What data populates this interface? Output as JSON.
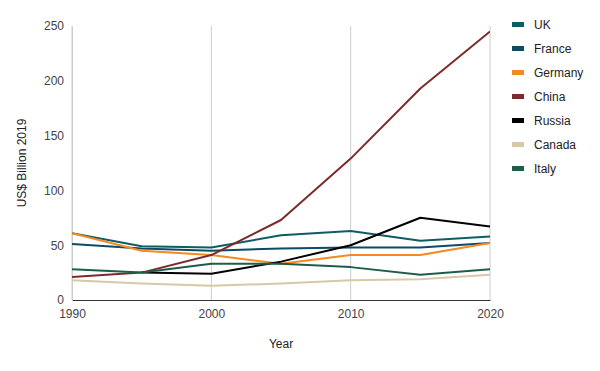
{
  "chart_data": {
    "type": "line",
    "x_label": "Year",
    "y_label": "US$ Billion 2019",
    "x": [
      1990,
      1995,
      2000,
      2005,
      2010,
      2015,
      2020
    ],
    "xlim": [
      1990,
      2020
    ],
    "xticks": [
      1990,
      2000,
      2010,
      2020
    ],
    "ylim": [
      0,
      250
    ],
    "yticks": [
      0,
      50,
      100,
      150,
      200,
      250
    ],
    "grid": true,
    "legend": "right",
    "series": [
      {
        "name": "UK",
        "color": "#0f5c63",
        "values": [
          61,
          49,
          48,
          59,
          63,
          54,
          58
        ]
      },
      {
        "name": "France",
        "color": "#0d4a66",
        "values": [
          51,
          47,
          45,
          47,
          48,
          48,
          52
        ]
      },
      {
        "name": "Germany",
        "color": "#f6891f",
        "values": [
          61,
          45,
          41,
          33,
          41,
          41,
          52
        ]
      },
      {
        "name": "China",
        "color": "#7b2b2b",
        "values": [
          21,
          25,
          41,
          73,
          129,
          193,
          245
        ]
      },
      {
        "name": "Russia",
        "color": "#000000",
        "values": [
          null,
          25,
          24,
          35,
          50,
          75,
          67
        ]
      },
      {
        "name": "Canada",
        "color": "#d7c9a7",
        "values": [
          18,
          15,
          13,
          15,
          18,
          19,
          23
        ]
      },
      {
        "name": "Italy",
        "color": "#1e5e48",
        "values": [
          28,
          25,
          33,
          33,
          30,
          23,
          28
        ]
      }
    ]
  }
}
